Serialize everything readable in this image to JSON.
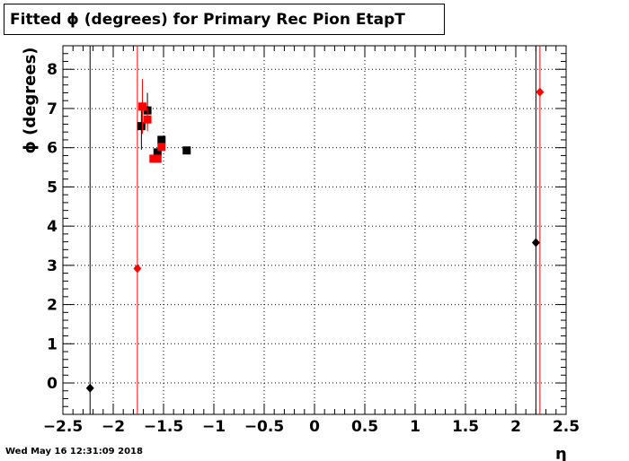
{
  "title": "Fitted ϕ (degrees) for Primary Rec Pion EtapT",
  "timestamp": "Wed May 16 12:31:09 2018",
  "chart_data": {
    "type": "scatter",
    "title": "Fitted ϕ (degrees) for Primary Rec Pion EtapT",
    "xlabel": "η",
    "ylabel": "ϕ (degrees)",
    "xlim": [
      -2.5,
      2.5
    ],
    "ylim": [
      -0.8,
      8.6
    ],
    "grid": true,
    "xticks": [
      "−2.5",
      "−2",
      "−1.5",
      "−1",
      "−0.5",
      "0",
      "0.5",
      "1",
      "1.5",
      "2",
      "2.5"
    ],
    "yticks": [
      "0",
      "1",
      "2",
      "3",
      "4",
      "5",
      "6",
      "7",
      "8"
    ],
    "series": [
      {
        "color": "#000000",
        "marker": "diamond",
        "points": [
          {
            "x": -2.23,
            "y": -0.13,
            "err": 12
          },
          {
            "x": 2.2,
            "y": 3.58,
            "err": 12
          }
        ]
      },
      {
        "color": "#ff0000",
        "marker": "diamond",
        "points": [
          {
            "x": -1.76,
            "y": 2.92,
            "err": 12
          },
          {
            "x": 2.24,
            "y": 7.42,
            "err": 12
          }
        ]
      },
      {
        "color": "#000000",
        "marker": "square",
        "points": [
          {
            "x": -1.72,
            "y": 6.55,
            "err": 0.6
          },
          {
            "x": -1.66,
            "y": 6.95,
            "err": 0.45
          },
          {
            "x": -1.56,
            "y": 5.88,
            "err": 0.1
          },
          {
            "x": -1.52,
            "y": 6.2,
            "err": 0.1
          },
          {
            "x": -1.27,
            "y": 5.93,
            "err": 0.05
          }
        ]
      },
      {
        "color": "#ff0000",
        "marker": "square",
        "points": [
          {
            "x": -1.71,
            "y": 7.05,
            "err": 0.7
          },
          {
            "x": -1.66,
            "y": 6.72,
            "err": 0.3
          },
          {
            "x": -1.6,
            "y": 5.72,
            "err": 0.05
          },
          {
            "x": -1.56,
            "y": 5.72,
            "err": 0.05
          },
          {
            "x": -1.52,
            "y": 6.02,
            "err": 0.05
          }
        ]
      }
    ]
  }
}
